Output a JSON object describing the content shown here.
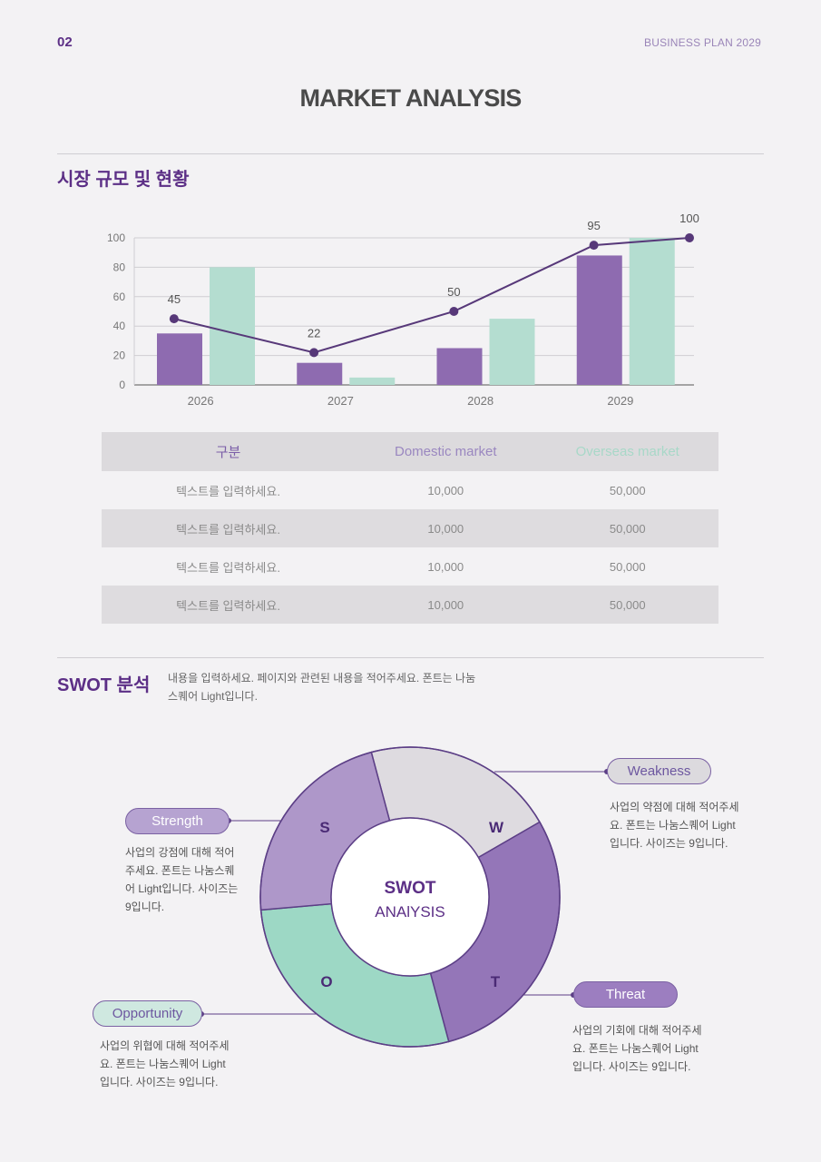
{
  "header": {
    "page_number": "02",
    "doc_title": "BUSINESS PLAN 2029"
  },
  "title": "MARKET ANALYSIS",
  "market": {
    "heading": "시장 규모 및 현황",
    "chart_data": {
      "type": "bar",
      "categories": [
        "2026",
        "2027",
        "2028",
        "2029"
      ],
      "series": [
        {
          "values": [
            35,
            15,
            25,
            88
          ],
          "color": "#8e6bb0"
        },
        {
          "values": [
            80,
            5,
            45,
            100
          ],
          "color": "#b4ddd0"
        }
      ],
      "line": {
        "values": [
          45,
          22,
          50,
          95,
          100
        ],
        "x_positions": [
          0.2,
          1.2,
          2.2,
          3.2,
          4.0
        ],
        "color": "#573879"
      },
      "ylim": [
        0,
        100
      ],
      "yticks": [
        "0",
        "20",
        "40",
        "60",
        "80",
        "100"
      ],
      "grid": true
    },
    "table": {
      "headers": [
        "구분",
        "Domestic market",
        "Overseas market"
      ],
      "header_colors": [
        "#7b5ea8",
        "#9a87c0",
        "#a8d8c8"
      ],
      "rows": [
        [
          "텍스트를 입력하세요.",
          "10,000",
          "50,000"
        ],
        [
          "텍스트를 입력하세요.",
          "10,000",
          "50,000"
        ],
        [
          "텍스트를 입력하세요.",
          "10,000",
          "50,000"
        ],
        [
          "텍스트를 입력하세요.",
          "10,000",
          "50,000"
        ]
      ]
    }
  },
  "swot": {
    "heading": "SWOT 분석",
    "description": "내용을 입력하세요. 페이지와 관련된 내용을 적어주세요. 폰트는 나눔스퀘어 Light입니다.",
    "center_title": "SWOT",
    "center_sub": "ANAlYSIS",
    "letters": {
      "s": "S",
      "w": "W",
      "o": "O",
      "t": "T"
    },
    "colors": {
      "s": "#ae97c9",
      "w": "#dedbe0",
      "o": "#9dd8c5",
      "t": "#9476b8",
      "ring_stroke": "#5c3f86"
    },
    "strength": {
      "label": "Strength",
      "text": "사업의 강점에 대해 적어주세요. 폰트는 나눔스퀘어 Light입니다. 사이즈는 9입니다."
    },
    "weakness": {
      "label": "Weakness",
      "text": "사업의 약점에 대해 적어주세요. 폰트는 나눔스퀘어 Light입니다. 사이즈는 9입니다."
    },
    "opportunity": {
      "label": "Opportunity",
      "text": "사업의 위협에 대해 적어주세요. 폰트는 나눔스퀘어 Light입니다. 사이즈는 9입니다."
    },
    "threat": {
      "label": "Threat",
      "text": "사업의 기회에 대해 적어주세요. 폰트는 나눔스퀘어 Light입니다. 사이즈는 9입니다."
    }
  }
}
